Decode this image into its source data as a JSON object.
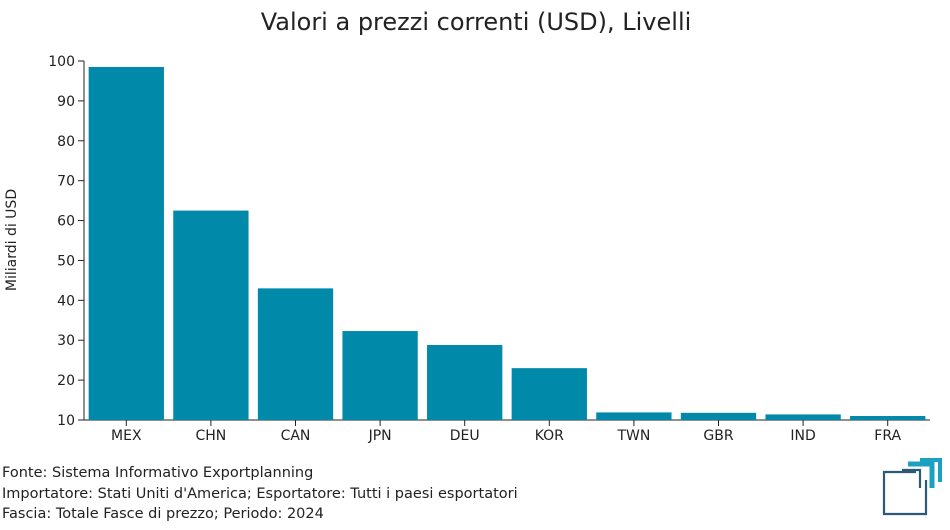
{
  "chart_data": {
    "type": "bar",
    "title": "Valori a prezzi correnti (USD), Livelli",
    "ylabel": "Miliardi di USD",
    "xlabel": "",
    "categories": [
      "MEX",
      "CHN",
      "CAN",
      "JPN",
      "DEU",
      "KOR",
      "TWN",
      "GBR",
      "IND",
      "FRA"
    ],
    "values": [
      98.5,
      62.5,
      43,
      32.3,
      28.8,
      23,
      11.9,
      11.8,
      11.4,
      11
    ],
    "ylim": [
      10,
      100
    ],
    "yticks": [
      10,
      20,
      30,
      40,
      50,
      60,
      70,
      80,
      90,
      100
    ],
    "bar_color": "#0089a8",
    "grid": false,
    "legend": "none"
  },
  "footer": {
    "source": "Fonte: Sistema Informativo Exportplanning",
    "importer": "Importatore: Stati Uniti d'America; Esportatore: Tutti i paesi esportatori",
    "band": "Fascia: Totale Fasce di prezzo; Periodo: 2024"
  },
  "logo": {
    "icon": "exportplanning-logo-icon",
    "colors": [
      "#2b5a78",
      "#1aa0c0"
    ]
  }
}
